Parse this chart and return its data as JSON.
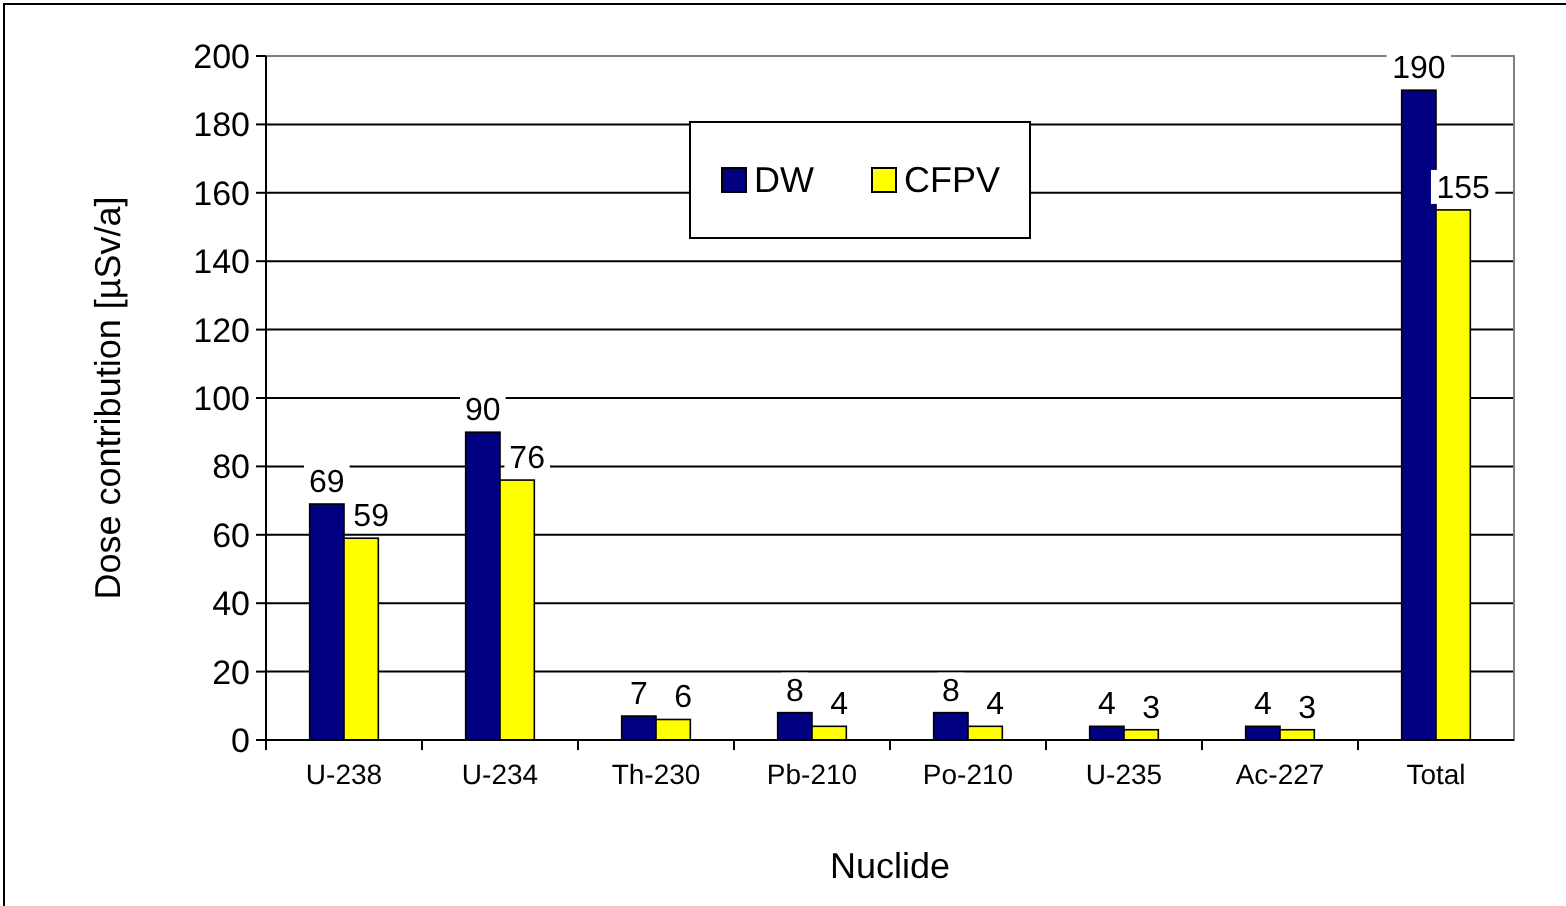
{
  "chart_data": {
    "type": "bar",
    "xlabel": "Nuclide",
    "ylabel": "Dose contribution [µSv/a]",
    "categories": [
      "U-238",
      "U-234",
      "Th-230",
      "Pb-210",
      "Po-210",
      "U-235",
      "Ac-227",
      "Total"
    ],
    "series": [
      {
        "name": "DW",
        "color": "#000080",
        "values": [
          69,
          90,
          7,
          8,
          8,
          4,
          4,
          190
        ]
      },
      {
        "name": "CFPV",
        "color": "#ffff00",
        "values": [
          59,
          76,
          6,
          4,
          4,
          3,
          3,
          155
        ]
      }
    ],
    "ylim": [
      0,
      200
    ],
    "yticks": [
      0,
      20,
      40,
      60,
      80,
      100,
      120,
      140,
      160,
      180,
      200
    ],
    "grid": "y",
    "legend": "top",
    "data_labels": true
  }
}
